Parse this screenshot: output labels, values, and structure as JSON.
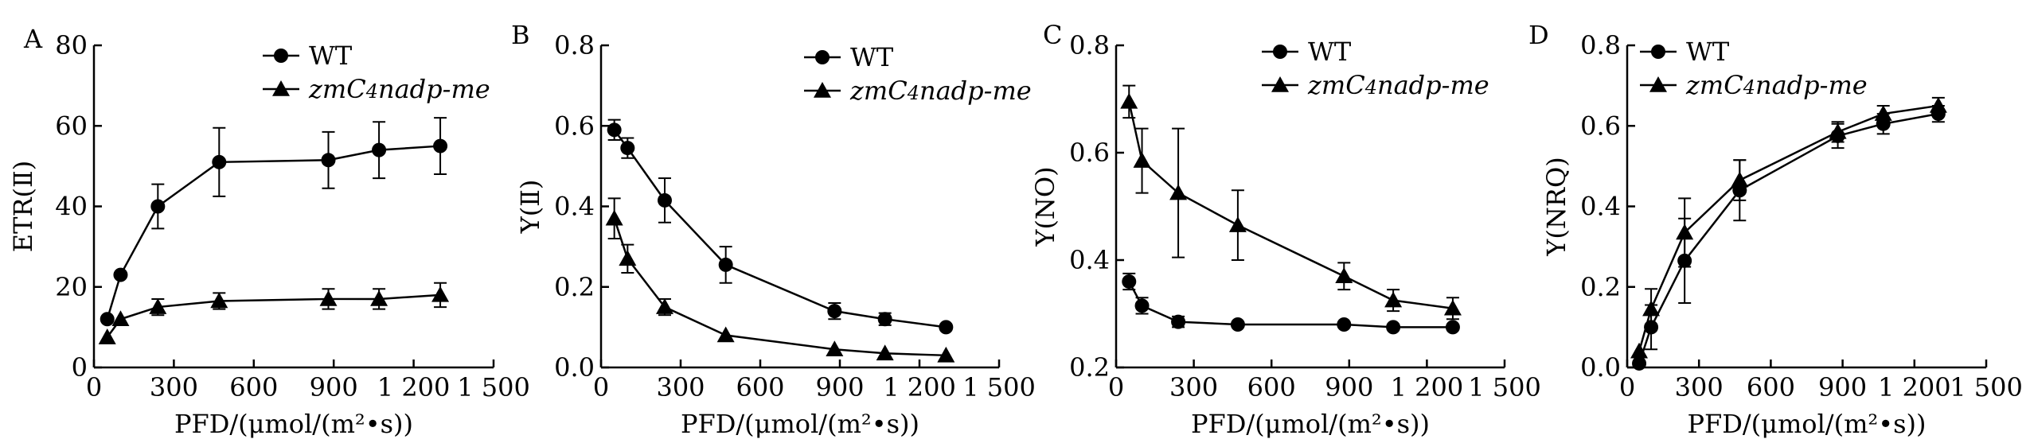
{
  "chart_data": [
    {
      "type": "line",
      "panel_label": "A",
      "xlabel": "PFD/(μmol/(m²•s))",
      "ylabel": "ETR(Ⅱ)",
      "xlim": [
        0,
        1500
      ],
      "ylim": [
        0,
        80
      ],
      "x_ticks": [
        0,
        300,
        600,
        900,
        1200,
        1500
      ],
      "x_tick_labels": [
        "0",
        "300",
        "600",
        "900",
        "1 200",
        "1 500"
      ],
      "y_ticks": [
        0,
        20,
        40,
        60,
        80
      ],
      "y_tick_labels": [
        "0",
        "20",
        "40",
        "60",
        "80"
      ],
      "legend": "top",
      "grid": false,
      "series": [
        {
          "name": "WT",
          "marker": "circle",
          "x": [
            50,
            100,
            240,
            470,
            880,
            1070,
            1300
          ],
          "y": [
            12,
            23,
            40,
            51,
            51.5,
            54,
            55
          ],
          "err": [
            0,
            0,
            5.5,
            8.5,
            7,
            7,
            7
          ]
        },
        {
          "name": "zmC4nadp-me",
          "marker": "triangle",
          "x": [
            50,
            100,
            240,
            470,
            880,
            1070,
            1300
          ],
          "y": [
            7.5,
            12,
            15,
            16.5,
            17,
            17,
            18
          ],
          "err": [
            0,
            0,
            2,
            2,
            2.5,
            2.5,
            3
          ]
        }
      ]
    },
    {
      "type": "line",
      "panel_label": "B",
      "xlabel": "PFD/(μmol/(m²•s))",
      "ylabel": "Y(Ⅱ)",
      "xlim": [
        0,
        1500
      ],
      "ylim": [
        0,
        0.8
      ],
      "x_ticks": [
        0,
        300,
        600,
        900,
        1200,
        1500
      ],
      "x_tick_labels": [
        "0",
        "300",
        "600",
        "900",
        "1 200",
        "1 500"
      ],
      "y_ticks": [
        0,
        0.2,
        0.4,
        0.6,
        0.8
      ],
      "y_tick_labels": [
        "0.0",
        "0.2",
        "0.4",
        "0.6",
        "0.8"
      ],
      "legend": "top-right",
      "grid": false,
      "series": [
        {
          "name": "WT",
          "marker": "circle",
          "x": [
            50,
            100,
            240,
            470,
            880,
            1070,
            1300
          ],
          "y": [
            0.59,
            0.545,
            0.415,
            0.255,
            0.14,
            0.12,
            0.1
          ],
          "err": [
            0.025,
            0.025,
            0.055,
            0.045,
            0.02,
            0.015,
            0
          ]
        },
        {
          "name": "zmC4nadp-me",
          "marker": "triangle",
          "x": [
            50,
            100,
            240,
            470,
            880,
            1070,
            1300
          ],
          "y": [
            0.37,
            0.27,
            0.15,
            0.08,
            0.045,
            0.035,
            0.03
          ],
          "err": [
            0.05,
            0.035,
            0.02,
            0,
            0,
            0,
            0
          ]
        }
      ]
    },
    {
      "type": "line",
      "panel_label": "C",
      "xlabel": "PFD/(μmol/(m²•s))",
      "ylabel": "Y(NO)",
      "xlim": [
        0,
        1500
      ],
      "ylim": [
        0.2,
        0.8
      ],
      "x_ticks": [
        0,
        300,
        600,
        900,
        1200,
        1500
      ],
      "x_tick_labels": [
        "0",
        "300",
        "600",
        "900",
        "1 200",
        "1 500"
      ],
      "y_ticks": [
        0.2,
        0.4,
        0.6,
        0.8
      ],
      "y_tick_labels": [
        "0.2",
        "0.4",
        "0.6",
        "0.8"
      ],
      "legend": "top-right",
      "grid": false,
      "series": [
        {
          "name": "WT",
          "marker": "circle",
          "x": [
            50,
            100,
            240,
            470,
            880,
            1070,
            1300
          ],
          "y": [
            0.36,
            0.315,
            0.285,
            0.28,
            0.28,
            0.275,
            0.275
          ],
          "err": [
            0.015,
            0.015,
            0.01,
            0,
            0,
            0,
            0
          ]
        },
        {
          "name": "zmC4nadp-me",
          "marker": "triangle",
          "x": [
            50,
            100,
            240,
            470,
            880,
            1070,
            1300
          ],
          "y": [
            0.695,
            0.585,
            0.525,
            0.465,
            0.37,
            0.325,
            0.31
          ],
          "err": [
            0.03,
            0.06,
            0.12,
            0.065,
            0.025,
            0.02,
            0.02
          ]
        }
      ]
    },
    {
      "type": "line",
      "panel_label": "D",
      "xlabel": "PFD/(μmol/(m²•s))",
      "ylabel": "Y(NRQ)",
      "xlim": [
        0,
        1500
      ],
      "ylim": [
        0,
        0.8
      ],
      "x_ticks": [
        0,
        300,
        600,
        900,
        1200,
        1500
      ],
      "x_tick_labels": [
        "0",
        "300",
        "600",
        "900",
        "1 200",
        "1 500"
      ],
      "y_ticks": [
        0,
        0.2,
        0.4,
        0.6,
        0.8
      ],
      "y_tick_labels": [
        "0.0",
        "0.2",
        "0.4",
        "0.6",
        "0.8"
      ],
      "legend": "top",
      "grid": false,
      "series": [
        {
          "name": "WT",
          "marker": "circle",
          "x": [
            50,
            100,
            240,
            470,
            880,
            1070,
            1300
          ],
          "y": [
            0.01,
            0.1,
            0.265,
            0.44,
            0.575,
            0.605,
            0.63
          ],
          "err": [
            0,
            0.055,
            0.105,
            0.075,
            0.03,
            0.025,
            0.02
          ]
        },
        {
          "name": "zmC4nadp-me",
          "marker": "triangle",
          "x": [
            50,
            100,
            240,
            470,
            880,
            1070,
            1300
          ],
          "y": [
            0.04,
            0.145,
            0.335,
            0.465,
            0.585,
            0.63,
            0.65
          ],
          "err": [
            0,
            0.05,
            0.085,
            0.05,
            0.025,
            0.02,
            0.02
          ]
        }
      ]
    }
  ]
}
